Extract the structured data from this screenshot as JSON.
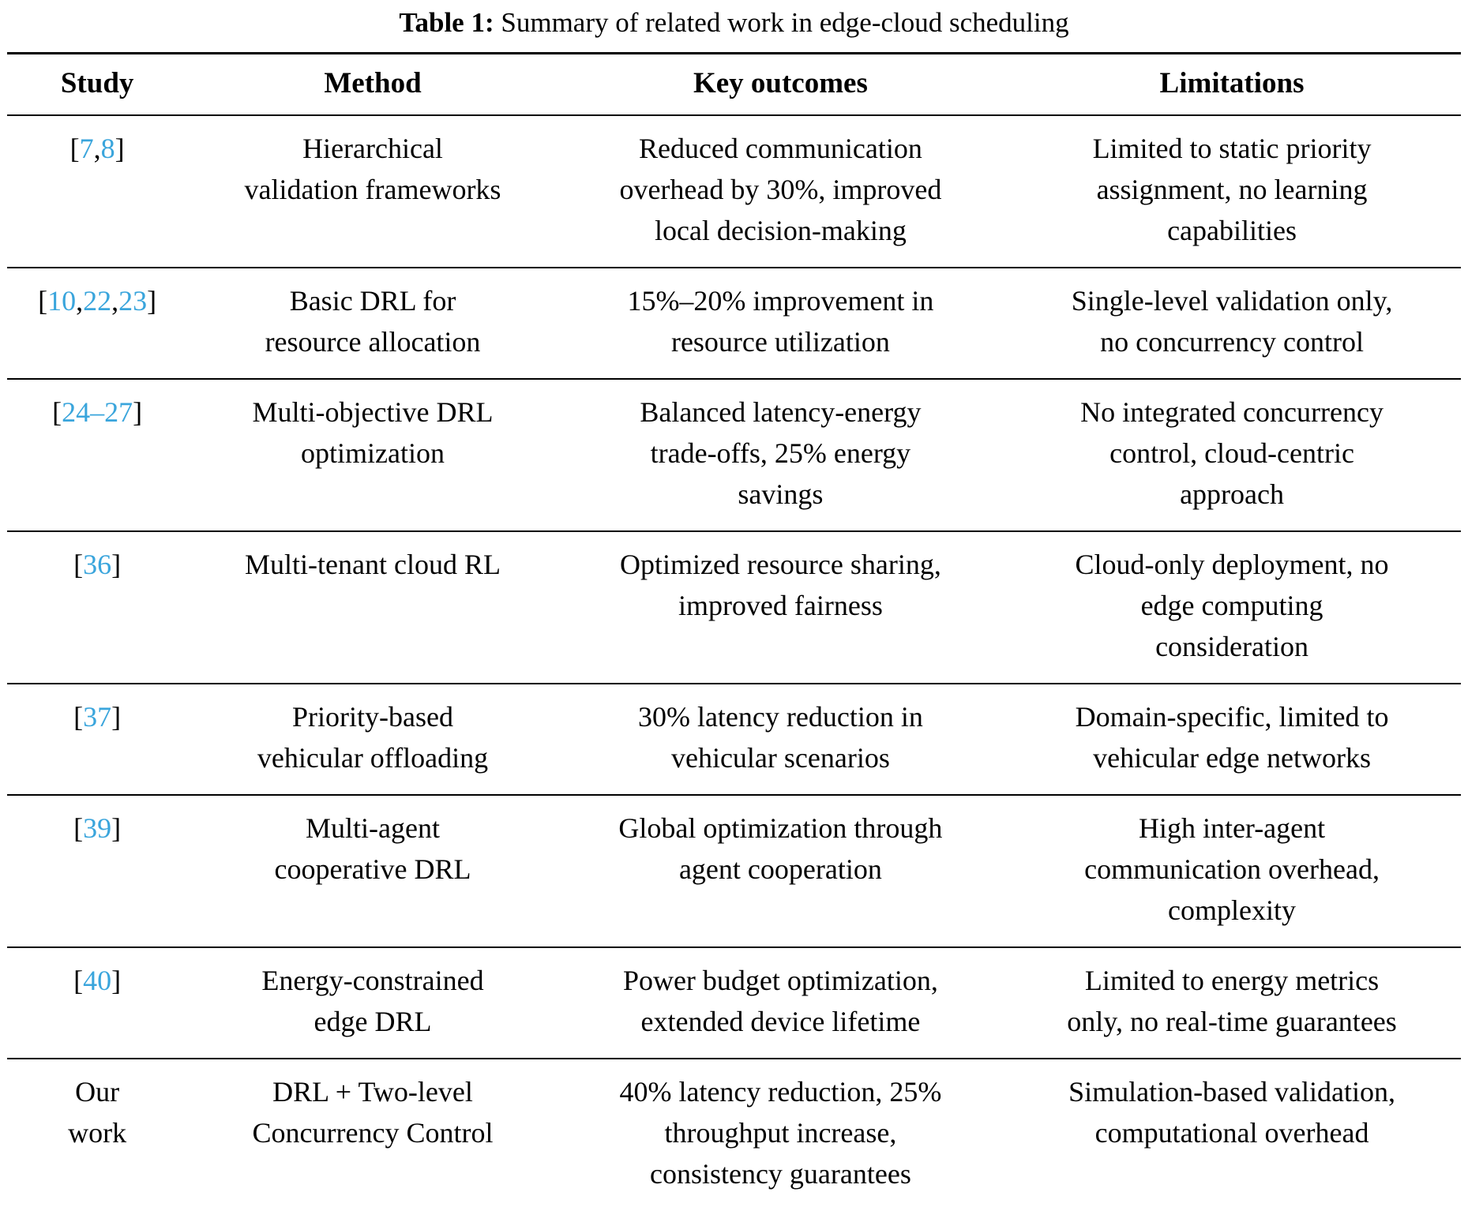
{
  "caption": {
    "label": "Table 1:",
    "text": "Summary of related work in edge-cloud scheduling"
  },
  "link_color": "#3aa5dc",
  "table": {
    "columns": [
      "Study",
      "Method",
      "Key outcomes",
      "Limitations"
    ],
    "rows": [
      {
        "study": {
          "segments": [
            {
              "text": "[",
              "ref": false
            },
            {
              "text": "7",
              "ref": true
            },
            {
              "text": ",",
              "ref": false
            },
            {
              "text": "8",
              "ref": true
            },
            {
              "text": "]",
              "ref": false
            }
          ]
        },
        "method": "Hierarchical\nvalidation frameworks",
        "outcomes": "Reduced communication\noverhead by 30%, improved\nlocal decision-making",
        "limitations": "Limited to static priority\nassignment, no learning\ncapabilities"
      },
      {
        "study": {
          "segments": [
            {
              "text": "[",
              "ref": false
            },
            {
              "text": "10",
              "ref": true
            },
            {
              "text": ",",
              "ref": false
            },
            {
              "text": "22",
              "ref": true
            },
            {
              "text": ",",
              "ref": false
            },
            {
              "text": "23",
              "ref": true
            },
            {
              "text": "]",
              "ref": false
            }
          ]
        },
        "method": "Basic DRL for\nresource allocation",
        "outcomes": "15%–20% improvement in\nresource utilization",
        "limitations": "Single-level validation only,\nno concurrency control"
      },
      {
        "study": {
          "segments": [
            {
              "text": "[",
              "ref": false
            },
            {
              "text": "24–27",
              "ref": true
            },
            {
              "text": "]",
              "ref": false
            }
          ]
        },
        "method": "Multi-objective DRL\noptimization",
        "outcomes": "Balanced latency-energy\ntrade-offs, 25% energy\nsavings",
        "limitations": "No integrated concurrency\ncontrol, cloud-centric\napproach"
      },
      {
        "study": {
          "segments": [
            {
              "text": "[",
              "ref": false
            },
            {
              "text": "36",
              "ref": true
            },
            {
              "text": "]",
              "ref": false
            }
          ]
        },
        "method": "Multi-tenant cloud RL",
        "outcomes": "Optimized resource sharing,\nimproved fairness",
        "limitations": "Cloud-only deployment, no\nedge computing\nconsideration"
      },
      {
        "study": {
          "segments": [
            {
              "text": "[",
              "ref": false
            },
            {
              "text": "37",
              "ref": true
            },
            {
              "text": "]",
              "ref": false
            }
          ]
        },
        "method": "Priority-based\nvehicular offloading",
        "outcomes": "30% latency reduction in\nvehicular scenarios",
        "limitations": "Domain-specific, limited to\nvehicular edge networks"
      },
      {
        "study": {
          "segments": [
            {
              "text": "[",
              "ref": false
            },
            {
              "text": "39",
              "ref": true
            },
            {
              "text": "]",
              "ref": false
            }
          ]
        },
        "method": "Multi-agent\ncooperative DRL",
        "outcomes": "Global optimization through\nagent cooperation",
        "limitations": "High inter-agent\ncommunication overhead,\ncomplexity"
      },
      {
        "study": {
          "segments": [
            {
              "text": "[",
              "ref": false
            },
            {
              "text": "40",
              "ref": true
            },
            {
              "text": "]",
              "ref": false
            }
          ]
        },
        "method": "Energy-constrained\nedge DRL",
        "outcomes": "Power budget optimization,\nextended device lifetime",
        "limitations": "Limited to energy metrics\nonly, no real-time guarantees"
      },
      {
        "study": {
          "text": "Our\nwork"
        },
        "method": "DRL + Two-level\nConcurrency Control",
        "outcomes": "40% latency reduction, 25%\nthroughput increase,\nconsistency guarantees",
        "limitations": "Simulation-based validation,\ncomputational overhead"
      }
    ]
  }
}
